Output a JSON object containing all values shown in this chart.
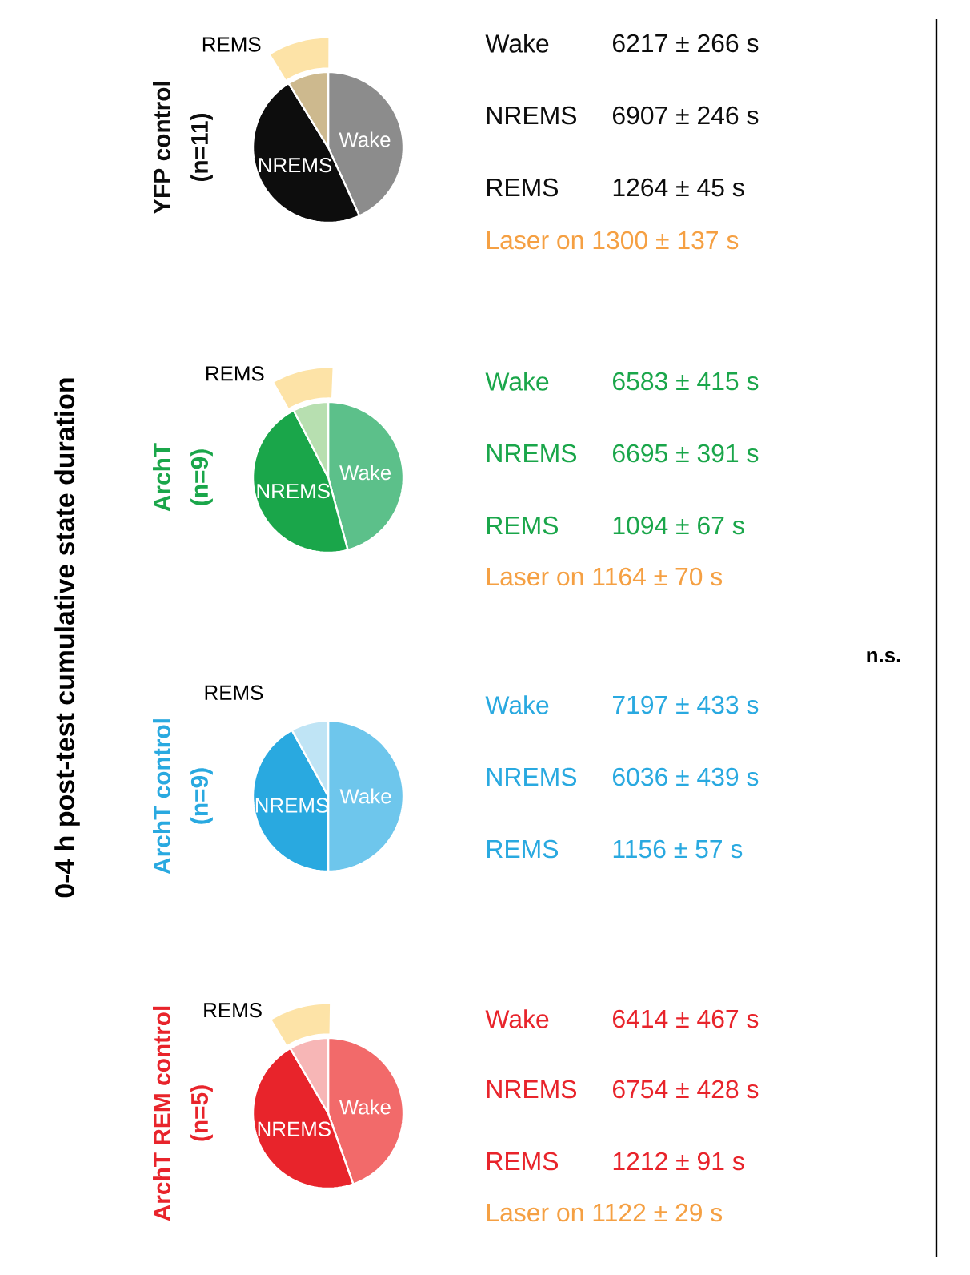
{
  "chart_data": [
    {
      "type": "pie",
      "title": "YFP control",
      "subtitle": "(n=11)",
      "categories": [
        "Wake",
        "NREMS",
        "REMS"
      ],
      "values": [
        43.2,
        48.0,
        8.8
      ],
      "colors": [
        "#8c8c8c",
        "#0d0d0d",
        "#cdb98e"
      ],
      "annotations": [
        "6217 ± 266 s",
        "6907 ± 246 s",
        "1264 ± 45 s",
        "Laser on 1300 ± 137 s"
      ]
    },
    {
      "type": "pie",
      "title": "ArchT",
      "subtitle": "(n=9)",
      "categories": [
        "Wake",
        "NREMS",
        "REMS"
      ],
      "values": [
        45.8,
        46.6,
        7.6
      ],
      "colors": [
        "#5cc08a",
        "#1aa64a",
        "#b7dfb0"
      ],
      "annotations": [
        "6583 ± 415 s",
        "6695 ± 391 s",
        "1094 ± 67 s",
        "Laser on 1164 ± 70 s"
      ]
    },
    {
      "type": "pie",
      "title": "ArchT control",
      "subtitle": "(n=9)",
      "categories": [
        "Wake",
        "NREMS",
        "REMS"
      ],
      "values": [
        50.0,
        42.0,
        8.0
      ],
      "colors": [
        "#6ec6ec",
        "#29a9e0",
        "#bfe4f5"
      ],
      "annotations": [
        "7197 ± 433 s",
        "6036 ± 439 s",
        "1156 ± 57 s"
      ]
    },
    {
      "type": "pie",
      "title": "ArchT REM control",
      "subtitle": "(n=5)",
      "categories": [
        "Wake",
        "NREMS",
        "REMS"
      ],
      "values": [
        44.6,
        47.0,
        8.4
      ],
      "colors": [
        "#f26a6a",
        "#e8242b",
        "#f7b6b6"
      ],
      "annotations": [
        "6414 ± 467 s",
        "6754 ± 428 s",
        "1212 ± 91 s",
        "Laser on 1122 ± 29 s"
      ]
    },
    {
      "type": "other",
      "title": "0-4 h post-test cumulative state duration",
      "annotations": [
        "n.s."
      ]
    }
  ]
}
